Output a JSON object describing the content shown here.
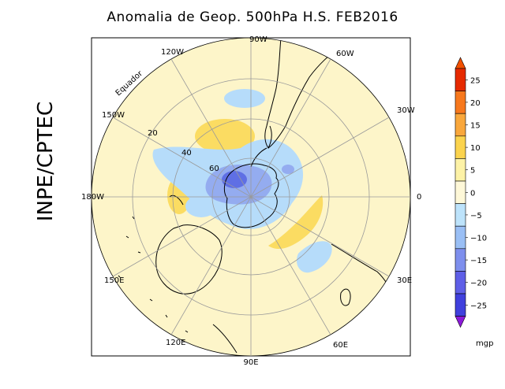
{
  "title": "Anomalia de Geop. 500hPa H.S. FEB2016",
  "side_label": "INPE/CPTEC",
  "longitude_labels": [
    "90W",
    "60W",
    "30W",
    "0",
    "30E",
    "60E",
    "90E",
    "120E",
    "150E",
    "180W",
    "150W",
    "120W"
  ],
  "latitude_labels": [
    "20",
    "40",
    "60"
  ],
  "equator_label": "Equador",
  "colorbar": {
    "unit": "mgp",
    "ticks": [
      "25",
      "20",
      "15",
      "10",
      "5",
      "0",
      "−5",
      "−10",
      "−15",
      "−20",
      "−25"
    ],
    "colors": [
      "#e62a00",
      "#f7781d",
      "#f9a73c",
      "#fbd34e",
      "#fdf2a6",
      "#fef8d8",
      "#bde3fb",
      "#9abff5",
      "#7e8fed",
      "#5f5fe7",
      "#4040dd",
      "#8c1ad9",
      "#f25000"
    ]
  },
  "colors": {
    "disk": "#fdf5c9",
    "positive": "#fbdc62",
    "negative_light": "#b6dcfa",
    "negative_mid": "#94acf0",
    "negative_strong": "#5f6fe4"
  }
}
